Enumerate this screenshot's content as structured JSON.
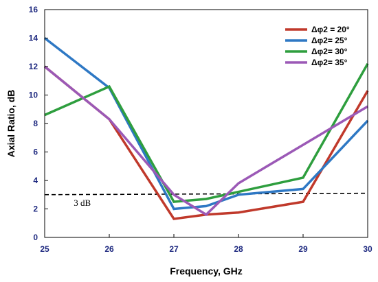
{
  "chart_data": {
    "type": "line",
    "xlabel": "Frequency, GHz",
    "ylabel": "Axial Ratio, dB",
    "xlim": [
      25,
      30
    ],
    "ylim": [
      0,
      16
    ],
    "x_ticks": [
      "25",
      "26",
      "27",
      "28",
      "29",
      "30"
    ],
    "y_ticks": [
      "0",
      "2",
      "4",
      "6",
      "8",
      "10",
      "12",
      "14",
      "16"
    ],
    "grid": false,
    "legend_position": "top-right",
    "series": [
      {
        "name": "Δφ2 = 20°",
        "color": "#c0392b",
        "x": [
          25,
          26,
          27,
          27.5,
          28,
          29,
          30
        ],
        "y": [
          12.0,
          8.3,
          1.3,
          1.6,
          1.75,
          2.5,
          10.3
        ]
      },
      {
        "name": "Δφ2= 25°",
        "color": "#2e78c4",
        "x": [
          25,
          26,
          27,
          27.5,
          28,
          29,
          30
        ],
        "y": [
          14.0,
          10.5,
          2.0,
          2.2,
          3.0,
          3.4,
          8.2
        ]
      },
      {
        "name": "Δφ2= 30°",
        "color": "#2e9e3e",
        "x": [
          25,
          26,
          27,
          27.5,
          28,
          29,
          30
        ],
        "y": [
          8.6,
          10.6,
          2.5,
          2.7,
          3.2,
          4.2,
          12.2
        ]
      },
      {
        "name": "Δφ2= 35°",
        "color": "#9b59b6",
        "x": [
          25,
          26,
          27,
          27.5,
          28,
          29,
          30
        ],
        "y": [
          12.0,
          8.3,
          3.0,
          1.6,
          3.8,
          6.5,
          9.2
        ]
      }
    ],
    "reference_line": {
      "label": "3 dB",
      "y": 3.0,
      "y_end": 3.1,
      "style": "dashed",
      "color": "#000000"
    }
  }
}
